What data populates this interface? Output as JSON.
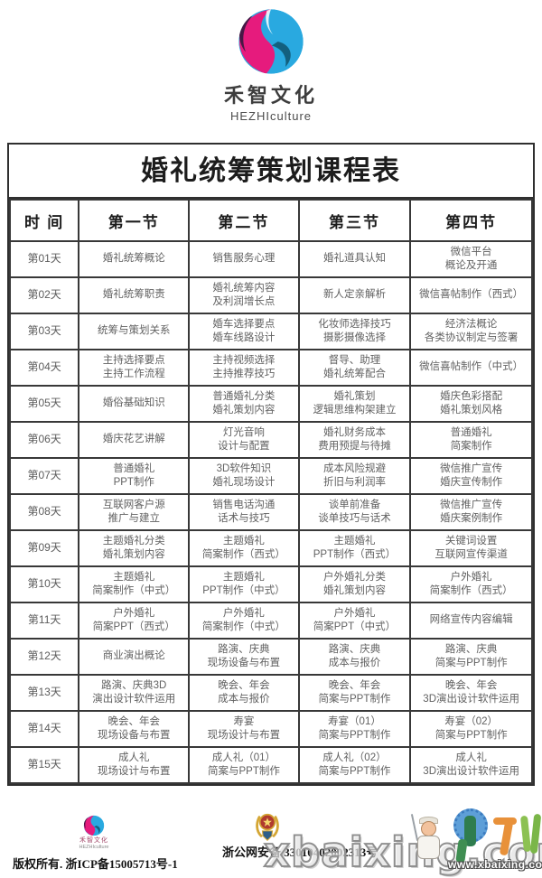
{
  "brand": {
    "name_cn": "禾智文化",
    "name_en": "HEZHIculture"
  },
  "table": {
    "title": "婚礼统筹策划课程表",
    "headers": [
      "时  间",
      "第一节",
      "第二节",
      "第三节",
      "第四节"
    ],
    "rows": [
      {
        "day": "第01天",
        "cells": [
          [
            "婚礼统筹概论"
          ],
          [
            "销售服务心理"
          ],
          [
            "婚礼道具认知"
          ],
          [
            "微信平台",
            "概论及开通"
          ]
        ]
      },
      {
        "day": "第02天",
        "cells": [
          [
            "婚礼统筹职责"
          ],
          [
            "婚礼统筹内容",
            "及利润增长点"
          ],
          [
            "新人定亲解析"
          ],
          [
            "微信喜帖制作（西式）"
          ]
        ]
      },
      {
        "day": "第03天",
        "cells": [
          [
            "统筹与策划关系"
          ],
          [
            "婚车选择要点",
            "婚车线路设计"
          ],
          [
            "化妆师选择技巧",
            "摄影摄像选择"
          ],
          [
            "经济法概论",
            "各类协议制定与签署"
          ]
        ]
      },
      {
        "day": "第04天",
        "cells": [
          [
            "主持选择要点",
            "主持工作流程"
          ],
          [
            "主持视频选择",
            "主持推荐技巧"
          ],
          [
            "督导、助理",
            "婚礼统筹配合"
          ],
          [
            "微信喜帖制作（中式）"
          ]
        ]
      },
      {
        "day": "第05天",
        "cells": [
          [
            "婚俗基础知识"
          ],
          [
            "普通婚礼分类",
            "婚礼策划内容"
          ],
          [
            "婚礼策划",
            "逻辑思维构架建立"
          ],
          [
            "婚庆色彩搭配",
            "婚礼策划风格"
          ]
        ]
      },
      {
        "day": "第06天",
        "cells": [
          [
            "婚庆花艺讲解"
          ],
          [
            "灯光音响",
            "设计与配置"
          ],
          [
            "婚礼财务成本",
            "费用预提与待摊"
          ],
          [
            "普通婚礼",
            "简案制作"
          ]
        ]
      },
      {
        "day": "第07天",
        "cells": [
          [
            "普通婚礼",
            "PPT制作"
          ],
          [
            "3D软件知识",
            "婚礼现场设计"
          ],
          [
            "成本风险规避",
            "折旧与利润率"
          ],
          [
            "微信推广宣传",
            "婚庆宣传制作"
          ]
        ]
      },
      {
        "day": "第08天",
        "cells": [
          [
            "互联网客户源",
            "推广与建立"
          ],
          [
            "销售电话沟通",
            "话术与技巧"
          ],
          [
            "谈单前准备",
            "谈单技巧与话术"
          ],
          [
            "微信推广宣传",
            "婚庆案例制作"
          ]
        ]
      },
      {
        "day": "第09天",
        "cells": [
          [
            "主题婚礼分类",
            "婚礼策划内容"
          ],
          [
            "主题婚礼",
            "简案制作（西式）"
          ],
          [
            "主题婚礼",
            "PPT制作（西式）"
          ],
          [
            "关键词设置",
            "互联网宣传渠道"
          ]
        ]
      },
      {
        "day": "第10天",
        "cells": [
          [
            "主题婚礼",
            "简案制作（中式）"
          ],
          [
            "主题婚礼",
            "PPT制作（中式）"
          ],
          [
            "户外婚礼分类",
            "婚礼策划内容"
          ],
          [
            "户外婚礼",
            "简案制作（西式）"
          ]
        ]
      },
      {
        "day": "第11天",
        "cells": [
          [
            "户外婚礼",
            "简案PPT（西式）"
          ],
          [
            "户外婚礼",
            "简案制作（中式）"
          ],
          [
            "户外婚礼",
            "简案PPT（中式）"
          ],
          [
            "网络宣传内容编辑"
          ]
        ]
      },
      {
        "day": "第12天",
        "cells": [
          [
            "商业演出概论"
          ],
          [
            "路演、庆典",
            "现场设备与布置"
          ],
          [
            "路演、庆典",
            "成本与报价"
          ],
          [
            "路演、庆典",
            "简案与PPT制作"
          ]
        ]
      },
      {
        "day": "第13天",
        "cells": [
          [
            "路演、庆典3D",
            "演出设计软件运用"
          ],
          [
            "晚会、年会",
            "成本与报价"
          ],
          [
            "晚会、年会",
            "简案与PPT制作"
          ],
          [
            "晚会、年会",
            "3D演出设计软件运用"
          ]
        ]
      },
      {
        "day": "第14天",
        "cells": [
          [
            "晚会、年会",
            "现场设备与布置"
          ],
          [
            "寿宴",
            "现场设计与布置"
          ],
          [
            "寿宴（01）",
            "简案与PPT制作"
          ],
          [
            "寿宴（02）",
            "简案与PPT制作"
          ]
        ]
      },
      {
        "day": "第15天",
        "cells": [
          [
            "成人礼",
            "现场设计与布置"
          ],
          [
            "成人礼（01）",
            "简案与PPT制作"
          ],
          [
            "成人礼（02）",
            "简案与PPT制作"
          ],
          [
            "成人礼",
            "3D演出设计软件运用"
          ]
        ]
      }
    ]
  },
  "footer": {
    "brand_cn": "禾智文化",
    "brand_en": "HEZHIculture",
    "copyright": "版权所有. 浙ICP备15005713号-1",
    "police_text": "浙公网安备 33010402002313号"
  },
  "watermark": {
    "big_text": "xbaixing.com",
    "url_text": "www.xbaixing.com"
  },
  "colors": {
    "logo_pink": "#e61b7d",
    "logo_purple": "#471845",
    "logo_blue": "#29a9e0",
    "logo_teal": "#13607e",
    "border": "#383838",
    "cell_text": "#616161"
  }
}
